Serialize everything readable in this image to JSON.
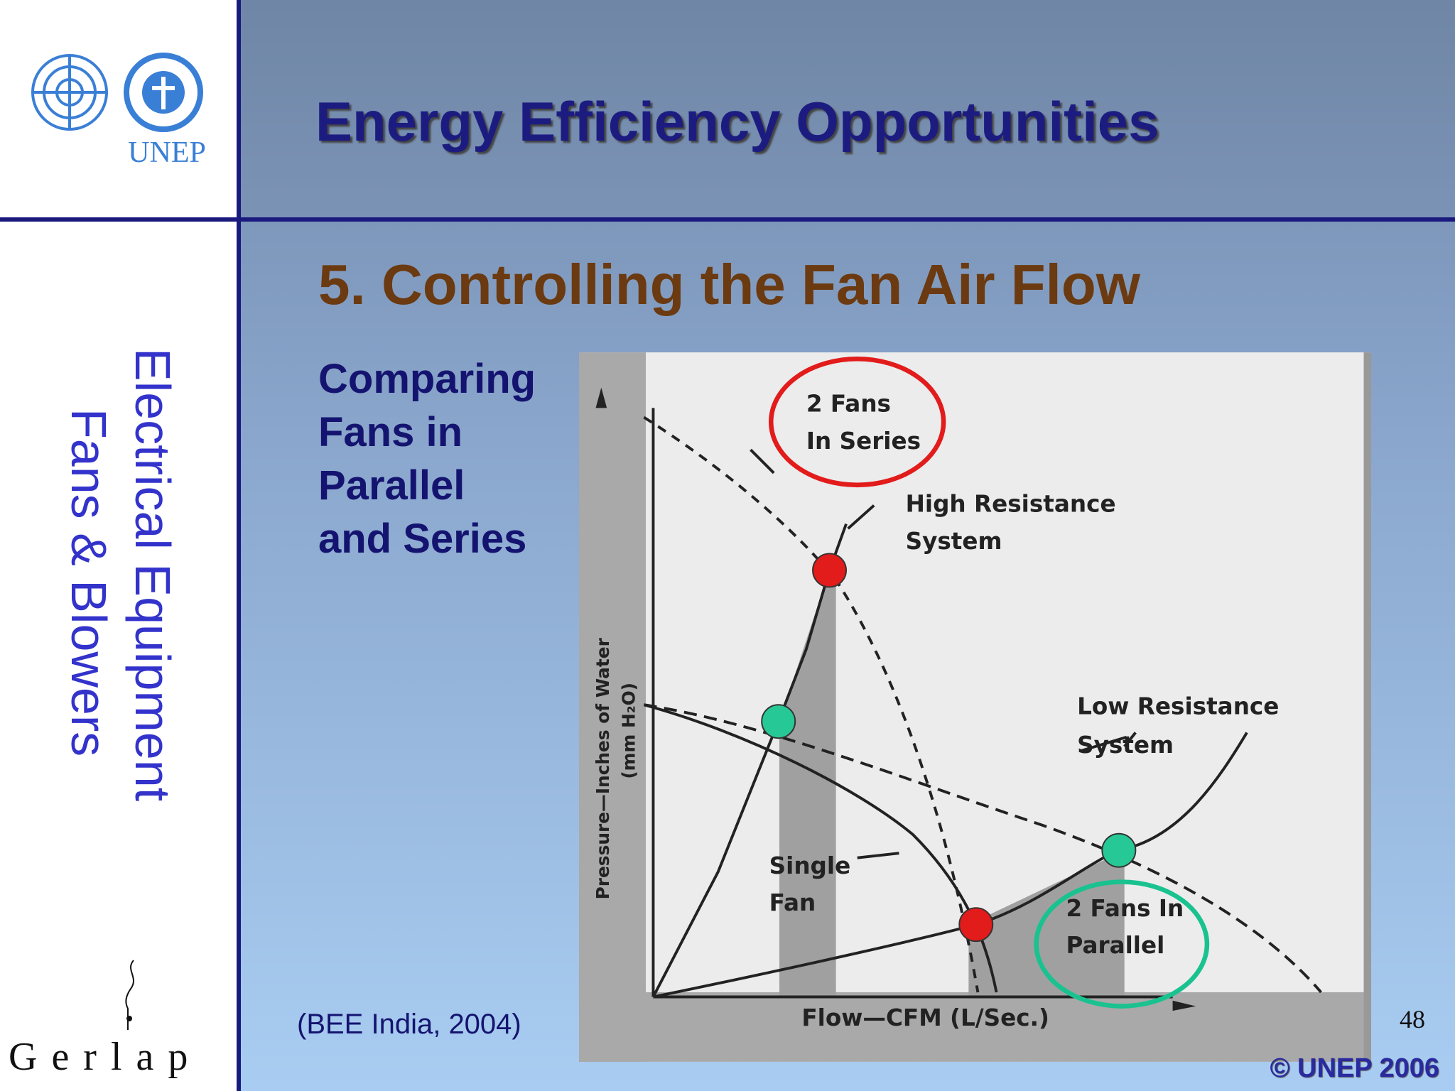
{
  "logo": {
    "organization": "UNEP"
  },
  "header": {
    "title": "Energy Efficiency Opportunities"
  },
  "sidebar": {
    "line1": "Electrical Equipment",
    "line2": "Fans & Blowers",
    "brand": "Gerlap"
  },
  "slide": {
    "heading": "5. Controlling the Fan Air Flow",
    "caption_lines": [
      "Comparing",
      "Fans in",
      "Parallel",
      "and Series"
    ],
    "source": "(BEE India, 2004)",
    "page_number": 48,
    "copyright": "© UNEP 2006"
  },
  "diagram": {
    "series_fans": [
      "2 Fans",
      "In Series"
    ],
    "high_resistance": [
      "High Resistance",
      "System"
    ],
    "low_resistance": [
      "Low Resistance",
      "System"
    ],
    "single_fan": [
      "Single",
      "Fan"
    ],
    "parallel_fans": [
      "2 Fans In",
      "Parallel"
    ],
    "y_axis": [
      "Pressure—Inches of Water",
      "(mm H₂O)"
    ],
    "x_axis": "Flow—CFM  (L/Sec.)"
  }
}
